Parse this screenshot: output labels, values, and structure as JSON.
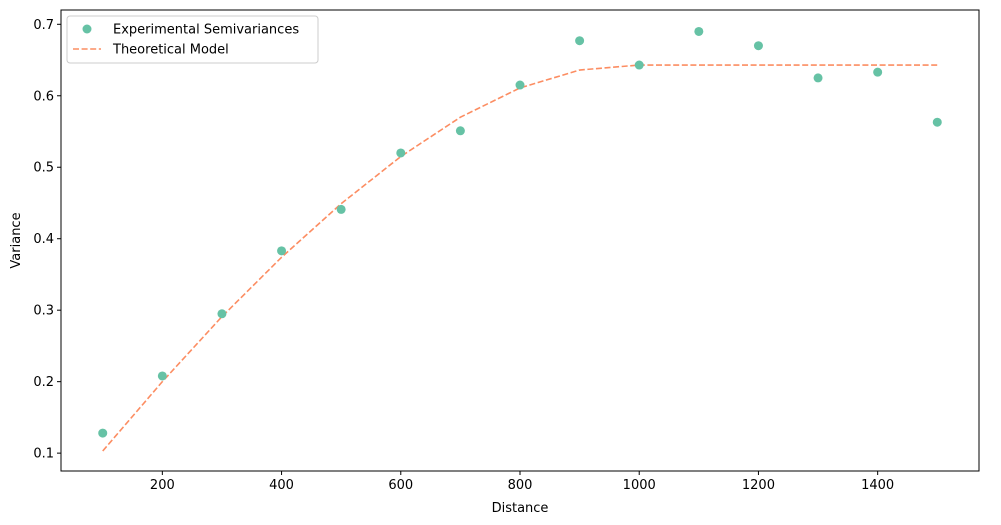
{
  "chart_data": {
    "type": "scatter",
    "title": "",
    "xlabel": "Distance",
    "ylabel": "Variance",
    "xlim": [
      30,
      1570
    ],
    "ylim": [
      0.075,
      0.72
    ],
    "grid": false,
    "legend_position": "top-left",
    "x_ticks": [
      200,
      400,
      600,
      800,
      1000,
      1200,
      1400
    ],
    "y_ticks": [
      0.1,
      0.2,
      0.3,
      0.4,
      0.5,
      0.6,
      0.7
    ],
    "x_tick_labels": [
      "200",
      "400",
      "600",
      "800",
      "1000",
      "1200",
      "1400"
    ],
    "y_tick_labels": [
      "0.1",
      "0.2",
      "0.3",
      "0.4",
      "0.5",
      "0.6",
      "0.7"
    ],
    "series": [
      {
        "name": "Experimental Semivariances",
        "kind": "scatter",
        "color": "#66c2a5",
        "x": [
          100,
          200,
          300,
          400,
          500,
          600,
          700,
          800,
          900,
          1000,
          1100,
          1200,
          1300,
          1400,
          1500
        ],
        "y": [
          0.128,
          0.208,
          0.295,
          0.383,
          0.441,
          0.52,
          0.551,
          0.615,
          0.677,
          0.643,
          0.69,
          0.67,
          0.625,
          0.633,
          0.563
        ]
      },
      {
        "name": "Theoretical Model",
        "kind": "line",
        "style": "dashed",
        "color": "#fc8d62",
        "x": [
          100,
          200,
          300,
          400,
          500,
          600,
          700,
          800,
          900,
          1000,
          1100,
          1200,
          1300,
          1400,
          1500
        ],
        "y": [
          0.103,
          0.2,
          0.291,
          0.374,
          0.449,
          0.515,
          0.57,
          0.611,
          0.636,
          0.643,
          0.643,
          0.643,
          0.643,
          0.643,
          0.643
        ]
      }
    ]
  }
}
